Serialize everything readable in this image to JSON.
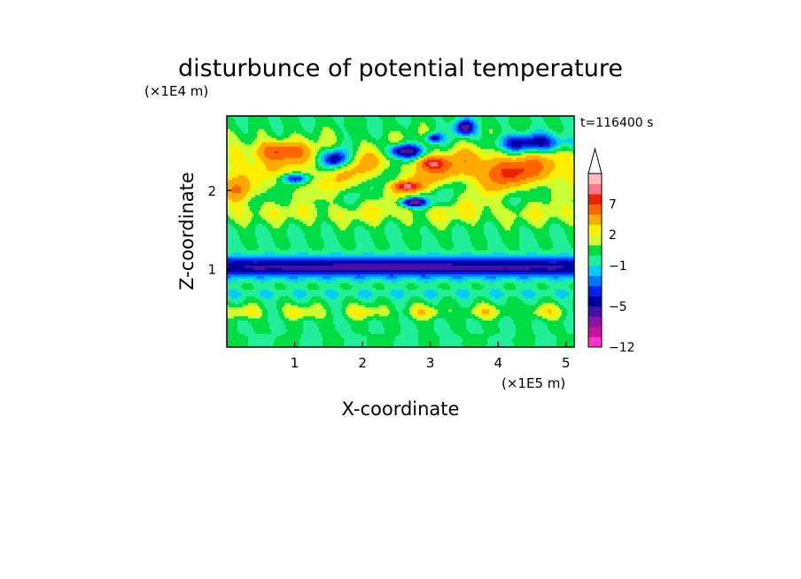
{
  "chart_data": {
    "type": "heatmap",
    "title": "disturbunce of potential temperature",
    "time_label": "t=116400 s",
    "xlabel": "X-coordinate",
    "ylabel": "Z-coordinate",
    "x_unit": "(×1E5 m)",
    "y_unit": "(×1E4 m)",
    "xlim": [
      0,
      5.12
    ],
    "ylim": [
      0,
      2.95
    ],
    "x_ticks": [
      "1",
      "2",
      "3",
      "4",
      "5"
    ],
    "y_ticks": [
      "1",
      "2"
    ],
    "colorbar": {
      "labels": [
        "7",
        "2",
        "−1",
        "−5",
        "−12"
      ],
      "label_values": [
        7,
        2,
        -1,
        -5,
        -12
      ],
      "levels": [
        -12,
        -10,
        -8,
        -6,
        -5,
        -4,
        -3,
        -2,
        -1,
        0,
        1,
        2,
        3,
        5,
        7,
        9,
        11
      ],
      "colors": [
        "#ff33cc",
        "#cc1199",
        "#8811aa",
        "#4411aa",
        "#0000a0",
        "#0022ee",
        "#0077ff",
        "#00ccff",
        "#22ee99",
        "#00dd44",
        "#ccff33",
        "#ffee00",
        "#ffaa00",
        "#ff6600",
        "#ee2200",
        "#ff7788",
        "#ffbbbb"
      ],
      "extend_top": true
    }
  }
}
